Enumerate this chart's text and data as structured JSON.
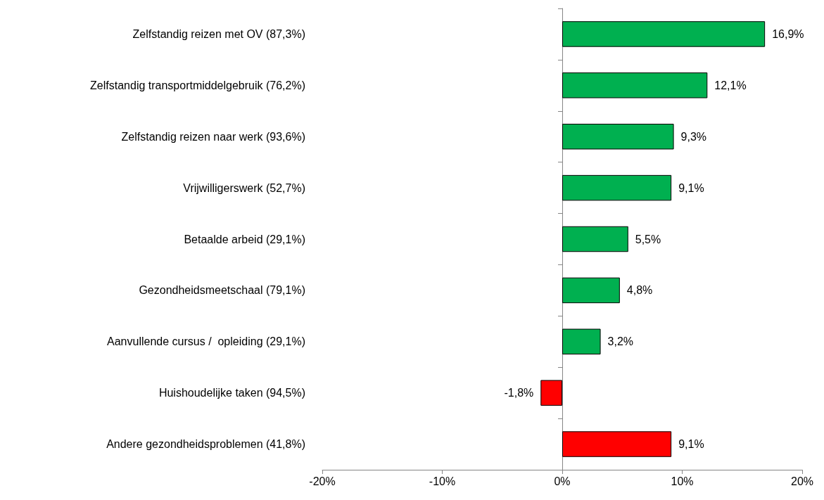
{
  "chart_data": {
    "type": "bar",
    "orientation": "horizontal",
    "categories": [
      "Zelfstandig reizen met OV (87,3%)",
      "Zelfstandig transportmiddelgebruik (76,2%)",
      "Zelfstandig reizen naar werk (93,6%)",
      "Vrijwilligerswerk (52,7%)",
      "Betaalde arbeid (29,1%)",
      "Gezondheidsmeetschaal (79,1%)",
      "Aanvullende cursus /  opleiding (29,1%)",
      "Huishoudelijke taken (94,5%)",
      "Andere gezondheidsproblemen (41,8%)"
    ],
    "values": [
      16.9,
      12.1,
      9.3,
      9.1,
      5.5,
      4.8,
      3.2,
      -1.8,
      9.1
    ],
    "value_labels": [
      "16,9%",
      "12,1%",
      "9,3%",
      "9,1%",
      "5,5%",
      "4,8%",
      "3,2%",
      "-1,8%",
      "9,1%"
    ],
    "colors": [
      "#00b050",
      "#00b050",
      "#00b050",
      "#00b050",
      "#00b050",
      "#00b050",
      "#00b050",
      "#ff0000",
      "#ff0000"
    ],
    "xlim": [
      -20,
      20
    ],
    "xticks": [
      {
        "value": -20,
        "label": "-20%"
      },
      {
        "value": -10,
        "label": "-10%"
      },
      {
        "value": 0,
        "label": "0%"
      },
      {
        "value": 10,
        "label": "10%"
      },
      {
        "value": 20,
        "label": "20%"
      }
    ]
  }
}
